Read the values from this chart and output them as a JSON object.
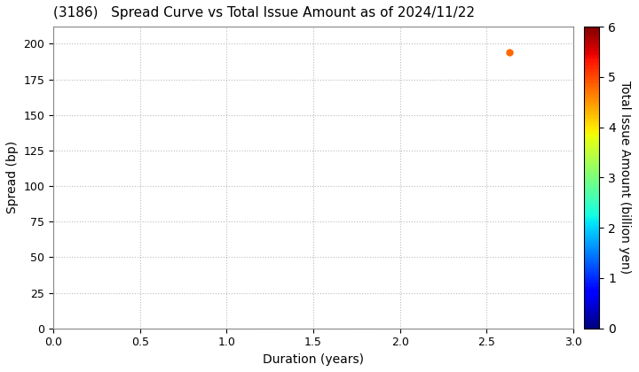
{
  "title": "(3186)   Spread Curve vs Total Issue Amount as of 2024/11/22",
  "xlabel": "Duration (years)",
  "ylabel": "Spread (bp)",
  "colorbar_label": "Total Issue Amount (billion yen)",
  "xlim": [
    0.0,
    3.0
  ],
  "ylim": [
    0,
    212
  ],
  "xticks": [
    0.0,
    0.5,
    1.0,
    1.5,
    2.0,
    2.5,
    3.0
  ],
  "yticks": [
    0,
    25,
    50,
    75,
    100,
    125,
    150,
    175,
    200
  ],
  "colorbar_min": 0,
  "colorbar_max": 6,
  "colorbar_ticks": [
    0,
    1,
    2,
    3,
    4,
    5,
    6
  ],
  "scatter_x": [
    2.63
  ],
  "scatter_y": [
    194
  ],
  "scatter_color_value": [
    4.8
  ],
  "scatter_size": 25,
  "background_color": "#ffffff",
  "grid_color": "#bbbbbb",
  "title_fontsize": 11,
  "axis_fontsize": 10,
  "colorbar_fontsize": 10,
  "tick_fontsize": 9
}
